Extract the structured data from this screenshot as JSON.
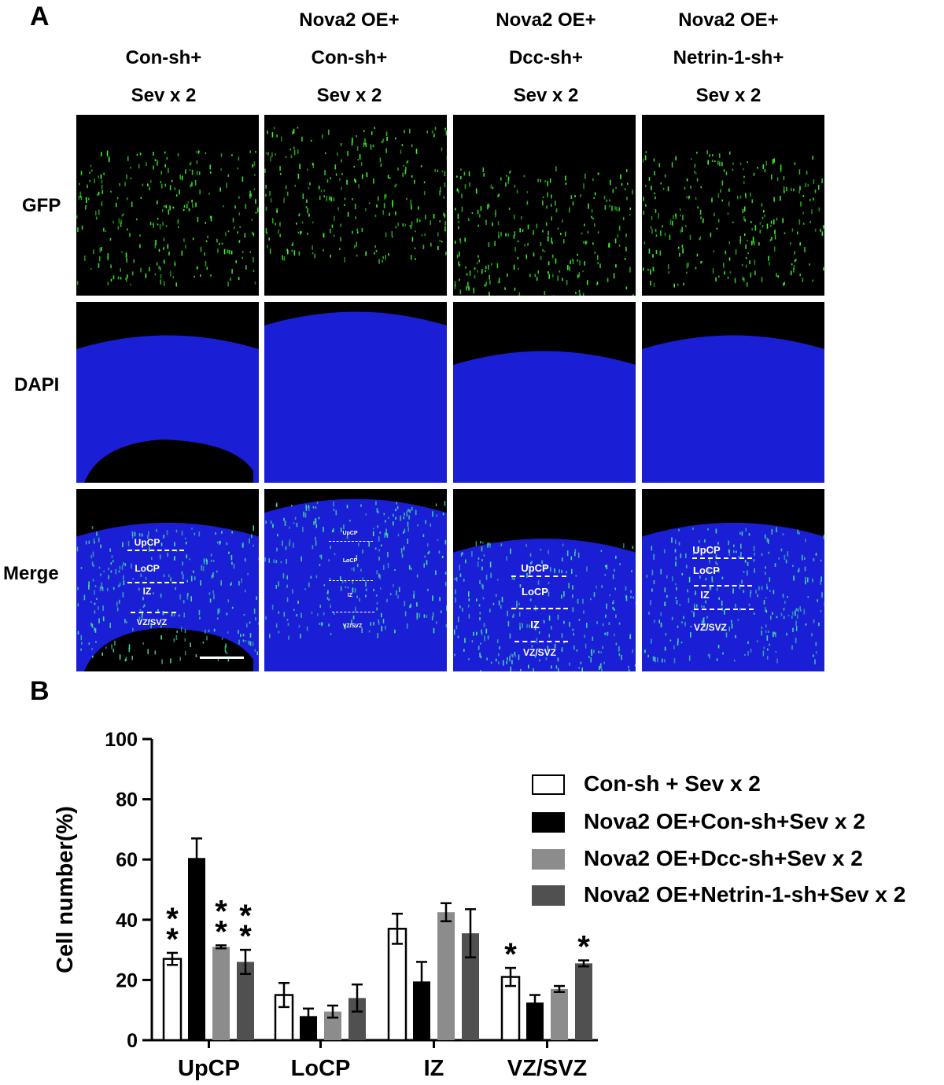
{
  "panel_a": {
    "letter": "A",
    "columns": [
      {
        "line1": "",
        "line2": "Con-sh+",
        "line3": "Sev x 2"
      },
      {
        "line1": "Nova2 OE+",
        "line2": "Con-sh+",
        "line3": "Sev x 2"
      },
      {
        "line1": "Nova2 OE+",
        "line2": "Dcc-sh+",
        "line3": "Sev x 2"
      },
      {
        "line1": "Nova2 OE+",
        "line2": "Netrin-1-sh+",
        "line3": "Sev x 2"
      }
    ],
    "rows": [
      "GFP",
      "DAPI",
      "Merge"
    ],
    "zones": {
      "upcp": "UpCP",
      "locp": "LoCP",
      "iz": "IZ",
      "vzsvz": "VZ/SVZ"
    },
    "colors": {
      "gfp": "#3cff2e",
      "dapi": "#1a1fd6",
      "background": "#000000"
    }
  },
  "panel_b": {
    "letter": "B",
    "chart_data": {
      "type": "bar",
      "categories": [
        "UpCP",
        "LoCP",
        "IZ",
        "VZ/SVZ"
      ],
      "ylabel": "Cell number(%)",
      "ylim": [
        0,
        100
      ],
      "yticks": [
        0,
        20,
        40,
        60,
        80,
        100
      ],
      "series": [
        {
          "name": "Con-sh + Sev x 2",
          "color": "#ffffff",
          "values": [
            27,
            15,
            37,
            21
          ],
          "errors": [
            2,
            4,
            5,
            3
          ],
          "marks": [
            "**",
            "",
            "",
            "*"
          ]
        },
        {
          "name": "Nova2 OE+Con-sh+Sev x 2",
          "color": "#000000",
          "values": [
            60.5,
            8,
            19.5,
            12.5
          ],
          "errors": [
            6.5,
            2.5,
            6.5,
            2.5
          ],
          "marks": [
            "",
            "",
            "",
            ""
          ]
        },
        {
          "name": "Nova2 OE+Dcc-sh+Sev x 2",
          "color": "#8c8c8c",
          "values": [
            31,
            9.5,
            42.5,
            17
          ],
          "errors": [
            0.5,
            2,
            3,
            1
          ],
          "marks": [
            "**",
            "",
            "",
            ""
          ]
        },
        {
          "name": "Nova2 OE+Netrin-1-sh+Sev x 2",
          "color": "#505050",
          "values": [
            26,
            14,
            35.5,
            25.5
          ],
          "errors": [
            4,
            4.5,
            8,
            1
          ],
          "marks": [
            "**",
            "",
            "",
            "*"
          ]
        }
      ],
      "legend_position": "right"
    }
  }
}
